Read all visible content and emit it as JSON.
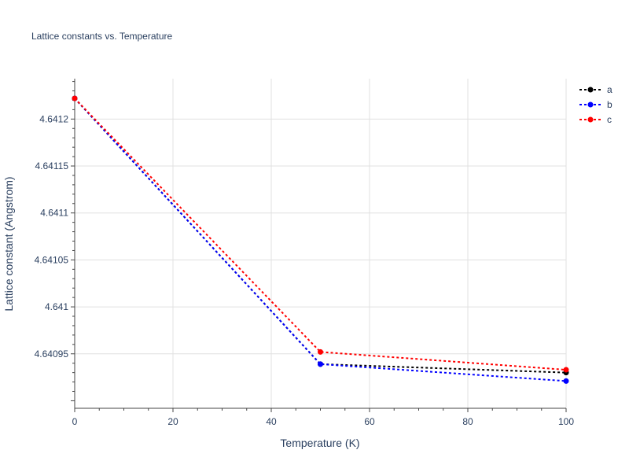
{
  "chart_data": {
    "type": "line",
    "title": "Lattice constants vs. Temperature",
    "xlabel": "Temperature (K)",
    "ylabel": "Lattice constant (Angstrom)",
    "xlim": [
      0,
      100
    ],
    "ylim": [
      4.640892,
      4.641243
    ],
    "x_ticks": [
      0,
      20,
      40,
      60,
      80,
      100
    ],
    "x_tick_labels": [
      "0",
      "20",
      "40",
      "60",
      "80",
      "100"
    ],
    "y_ticks": [
      4.64095,
      4.641,
      4.64105,
      4.6411,
      4.64115,
      4.6412
    ],
    "y_tick_labels": [
      "4.64095",
      "4.641",
      "4.64105",
      "4.6411",
      "4.64115",
      "4.6412"
    ],
    "grid": true,
    "legend_position": "top-right",
    "series": [
      {
        "name": "a",
        "color": "#000000",
        "line_style": "dotted",
        "x": [
          0,
          50,
          100
        ],
        "y": [
          4.641222,
          4.640939,
          4.64093
        ]
      },
      {
        "name": "b",
        "color": "#0000ff",
        "line_style": "dotted",
        "x": [
          0,
          50,
          100
        ],
        "y": [
          4.641222,
          4.640939,
          4.640921
        ]
      },
      {
        "name": "c",
        "color": "#ff0000",
        "line_style": "dotted",
        "x": [
          0,
          50,
          100
        ],
        "y": [
          4.641222,
          4.640952,
          4.640933
        ]
      }
    ]
  }
}
